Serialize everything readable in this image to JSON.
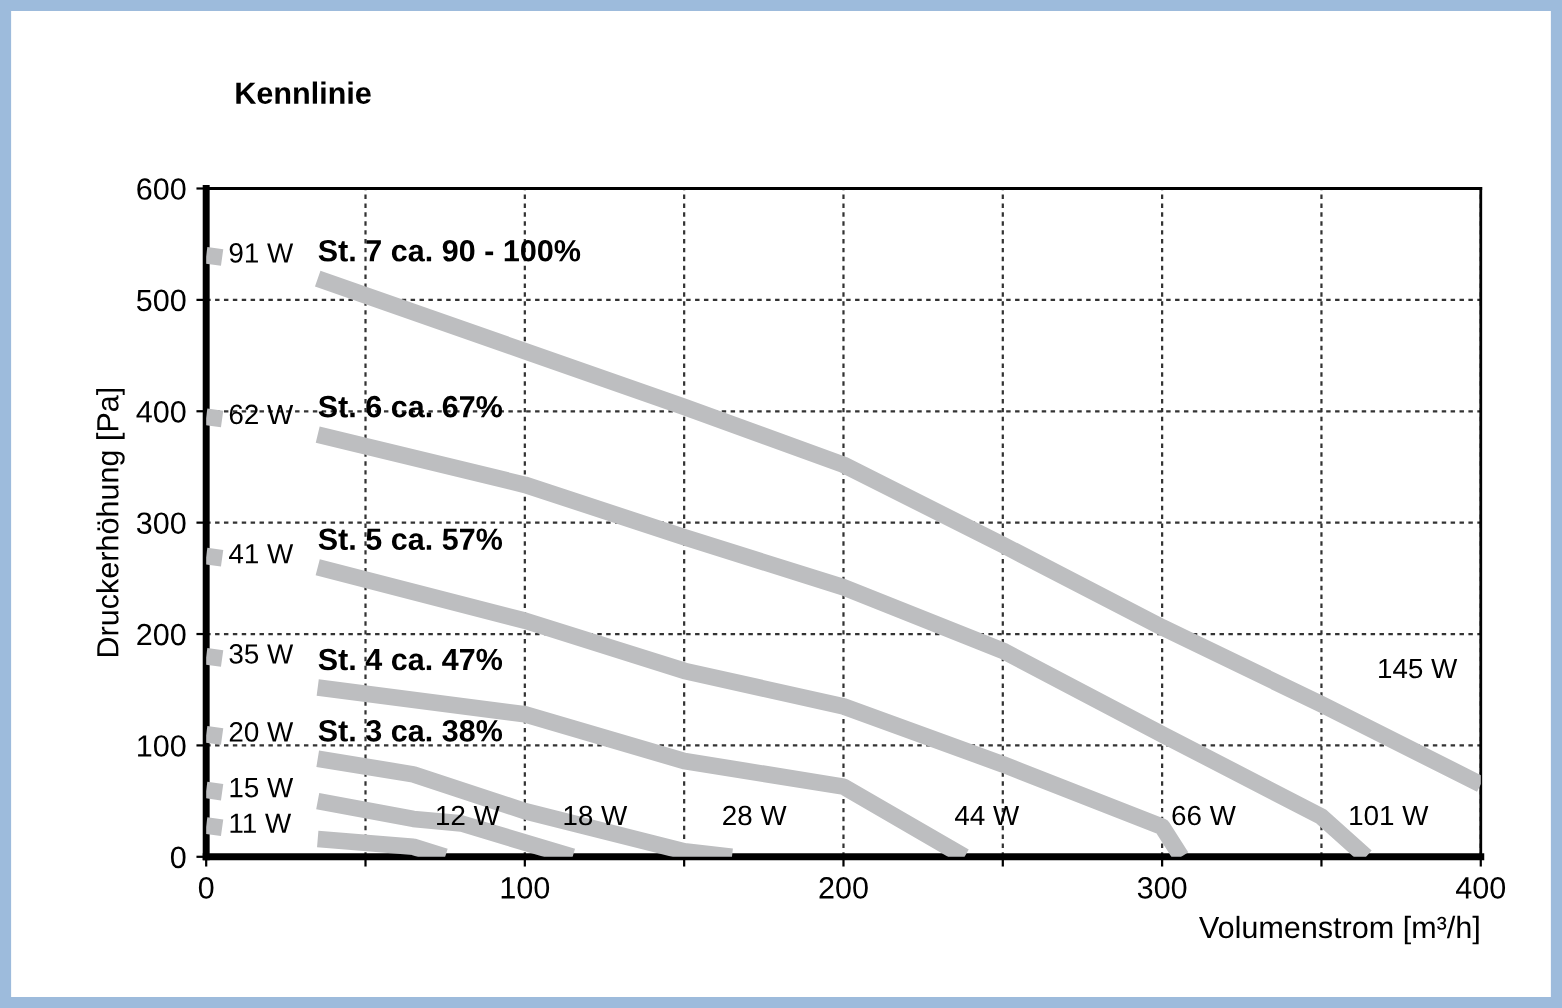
{
  "chart_data": {
    "type": "line",
    "title": "Kennlinie",
    "xlabel": "Volumenstrom [m³/h]",
    "ylabel": "Druckerhöhung [Pa]",
    "xlim": [
      0,
      400
    ],
    "ylim": [
      0,
      600
    ],
    "xticks": [
      0,
      {
        "value": 50,
        "label": null
      },
      100,
      {
        "value": 150,
        "label": null
      },
      200,
      {
        "value": 250,
        "label": null
      },
      300,
      {
        "value": 350,
        "label": null
      },
      400
    ],
    "yticks": [
      0,
      100,
      200,
      300,
      400,
      500,
      600
    ],
    "grid": true,
    "line_style": "solid",
    "marker": "none",
    "series": [
      {
        "name": "St. 7 ca. 90 - 100%",
        "color": "#bdbec0",
        "x": [
          0,
          5,
          20,
          35,
          100,
          150,
          200,
          250,
          300,
          350,
          400
        ],
        "values": [
          540,
          538,
          null,
          519,
          454,
          404,
          352,
          280,
          206,
          137,
          65
        ]
      },
      {
        "name": "St. 6 ca. 67%",
        "color": "#bdbec0",
        "x": [
          0,
          5,
          20,
          35,
          100,
          150,
          200,
          250,
          300,
          350,
          364
        ],
        "values": [
          395,
          393,
          null,
          379,
          334,
          287,
          242,
          185,
          110,
          36,
          0
        ]
      },
      {
        "name": "St. 5 ca. 57%",
        "color": "#bdbec0",
        "x": [
          0,
          5,
          20,
          35,
          100,
          150,
          200,
          250,
          300,
          306
        ],
        "values": [
          270,
          268,
          null,
          260,
          212,
          167,
          135,
          83,
          27,
          0
        ]
      },
      {
        "name": "St. 4 ca. 47%",
        "color": "#bdbec0",
        "x": [
          0,
          5,
          20,
          35,
          100,
          150,
          200,
          238
        ],
        "values": [
          180,
          178,
          null,
          152,
          128,
          86,
          63,
          0
        ]
      },
      {
        "name": "St. 3 ca. 38%",
        "color": "#bdbec0",
        "x": [
          0,
          5,
          20,
          35,
          65,
          100,
          150,
          165
        ],
        "values": [
          110,
          108,
          null,
          88,
          74,
          41,
          5,
          0
        ]
      },
      {
        "color": "#bdbec0",
        "x": [
          0,
          5,
          20,
          35,
          65,
          80,
          115
        ],
        "values": [
          60,
          58,
          null,
          50,
          34,
          30,
          0
        ]
      },
      {
        "color": "#bdbec0",
        "x": [
          0,
          5,
          20,
          35,
          65,
          75
        ],
        "values": [
          28,
          26,
          null,
          16,
          9,
          0
        ]
      }
    ],
    "annotations": [
      {
        "text": "91 W",
        "x": 0,
        "y": 540
      },
      {
        "text": "62 W",
        "x": 0,
        "y": 395
      },
      {
        "text": "41 W",
        "x": 0,
        "y": 270
      },
      {
        "text": "35 W",
        "x": 0,
        "y": 180
      },
      {
        "text": "20 W",
        "x": 0,
        "y": 110
      },
      {
        "text": "15 W",
        "x": 0,
        "y": 60
      },
      {
        "text": "11 W",
        "x": 0,
        "y": 28
      },
      {
        "text": "12 W",
        "x": 75,
        "y": 0
      },
      {
        "text": "18 W",
        "x": 115,
        "y": 0
      },
      {
        "text": "28 W",
        "x": 165,
        "y": 0
      },
      {
        "text": "44 W",
        "x": 238,
        "y": 0
      },
      {
        "text": "66 W",
        "x": 306,
        "y": 0
      },
      {
        "text": "101 W",
        "x": 364,
        "y": 0
      },
      {
        "text": "145 W",
        "x": 350,
        "y": 137
      }
    ]
  }
}
